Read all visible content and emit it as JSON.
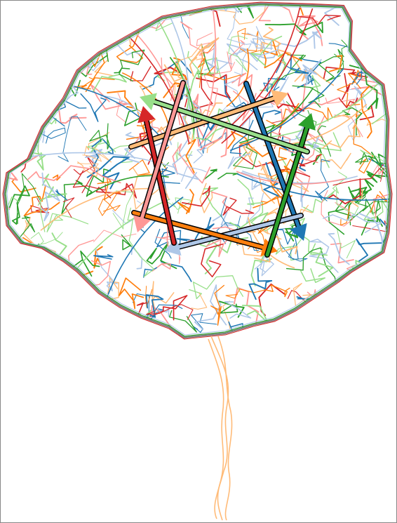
{
  "map": {
    "type": "street-network-route-map",
    "background_color": "#ffffff",
    "palette": [
      "#1f77b4",
      "#aec7e8",
      "#ff7f0e",
      "#ffbb78",
      "#2ca02c",
      "#98df8a",
      "#d62728",
      "#ff9896"
    ],
    "outline_color": "#000000",
    "tail_color": "#ffbb78",
    "arrows": [
      {
        "name": "arrow-dark-blue",
        "color": "#1f77b4"
      },
      {
        "name": "arrow-light-blue",
        "color": "#aec7e8"
      },
      {
        "name": "arrow-orange",
        "color": "#ff7f0e"
      },
      {
        "name": "arrow-light-orange",
        "color": "#ffbb78"
      },
      {
        "name": "arrow-green",
        "color": "#2ca02c"
      },
      {
        "name": "arrow-light-green",
        "color": "#98df8a"
      },
      {
        "name": "arrow-red",
        "color": "#d62728"
      },
      {
        "name": "arrow-pink",
        "color": "#ff9896"
      }
    ]
  }
}
